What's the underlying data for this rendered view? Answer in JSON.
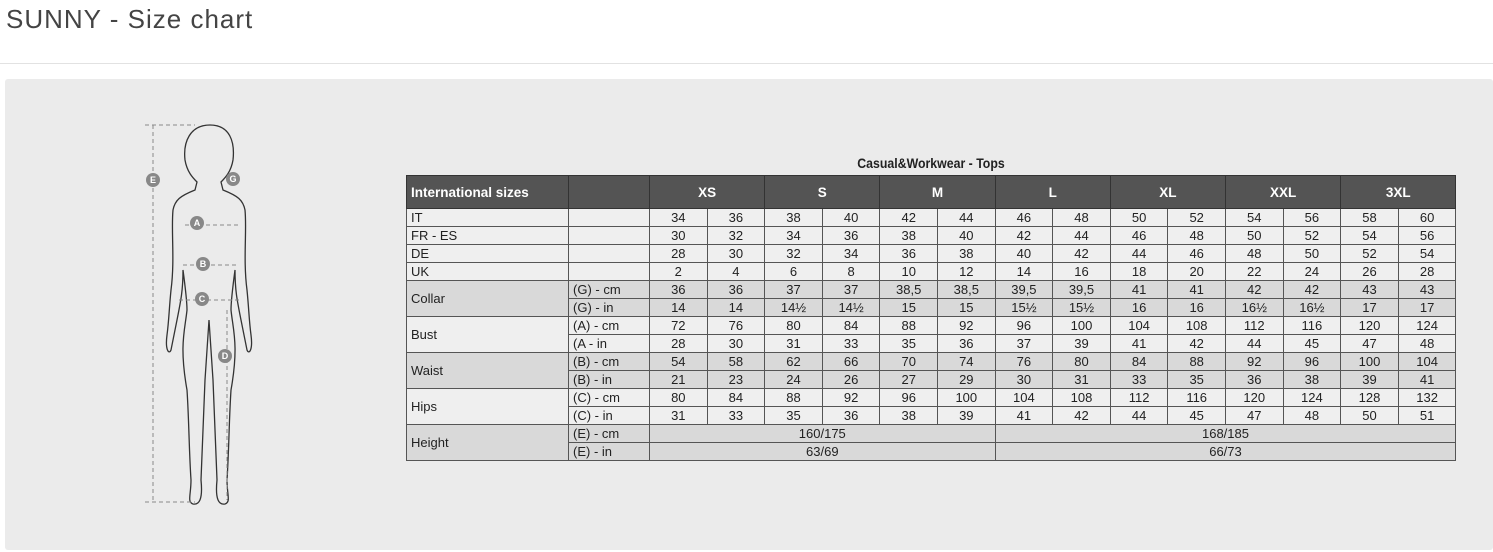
{
  "page_title": "SUNNY - Size chart",
  "figure": {
    "markers": [
      "A",
      "B",
      "C",
      "D",
      "E",
      "G"
    ]
  },
  "table": {
    "title": "Casual&Workwear - Tops",
    "header": {
      "first": "International sizes",
      "sizes": [
        "XS",
        "S",
        "M",
        "L",
        "XL",
        "XXL",
        "3XL"
      ]
    },
    "rows": [
      {
        "label": "IT",
        "sub": "",
        "values": [
          "34",
          "36",
          "38",
          "40",
          "42",
          "44",
          "46",
          "48",
          "50",
          "52",
          "54",
          "56",
          "58",
          "60"
        ],
        "shade": "light"
      },
      {
        "label": "FR - ES",
        "sub": "",
        "values": [
          "30",
          "32",
          "34",
          "36",
          "38",
          "40",
          "42",
          "44",
          "46",
          "48",
          "50",
          "52",
          "54",
          "56"
        ],
        "shade": "light"
      },
      {
        "label": "DE",
        "sub": "",
        "values": [
          "28",
          "30",
          "32",
          "34",
          "36",
          "38",
          "40",
          "42",
          "44",
          "46",
          "48",
          "50",
          "52",
          "54"
        ],
        "shade": "light"
      },
      {
        "label": "UK",
        "sub": "",
        "values": [
          "2",
          "4",
          "6",
          "8",
          "10",
          "12",
          "14",
          "16",
          "18",
          "20",
          "22",
          "24",
          "26",
          "28"
        ],
        "shade": "light"
      },
      {
        "label": "Collar",
        "sub": "(G) - cm",
        "values": [
          "36",
          "36",
          "37",
          "37",
          "38,5",
          "38,5",
          "39,5",
          "39,5",
          "41",
          "41",
          "42",
          "42",
          "43",
          "43"
        ],
        "shade": "dark",
        "group_start": true
      },
      {
        "label": "",
        "sub": "(G) - in",
        "values": [
          "14",
          "14",
          "14½",
          "14½",
          "15",
          "15",
          "15½",
          "15½",
          "16",
          "16",
          "16½",
          "16½",
          "17",
          "17"
        ],
        "shade": "dark"
      },
      {
        "label": "Bust",
        "sub": "(A) - cm",
        "values": [
          "72",
          "76",
          "80",
          "84",
          "88",
          "92",
          "96",
          "100",
          "104",
          "108",
          "112",
          "116",
          "120",
          "124"
        ],
        "shade": "light",
        "group_start": true
      },
      {
        "label": "",
        "sub": "(A - in",
        "values": [
          "28",
          "30",
          "31",
          "33",
          "35",
          "36",
          "37",
          "39",
          "41",
          "42",
          "44",
          "45",
          "47",
          "48"
        ],
        "shade": "light"
      },
      {
        "label": "Waist",
        "sub": "(B) - cm",
        "values": [
          "54",
          "58",
          "62",
          "66",
          "70",
          "74",
          "76",
          "80",
          "84",
          "88",
          "92",
          "96",
          "100",
          "104"
        ],
        "shade": "dark",
        "group_start": true
      },
      {
        "label": "",
        "sub": "(B) - in",
        "values": [
          "21",
          "23",
          "24",
          "26",
          "27",
          "29",
          "30",
          "31",
          "33",
          "35",
          "36",
          "38",
          "39",
          "41"
        ],
        "shade": "dark"
      },
      {
        "label": "Hips",
        "sub": "(C) - cm",
        "values": [
          "80",
          "84",
          "88",
          "92",
          "96",
          "100",
          "104",
          "108",
          "112",
          "116",
          "120",
          "124",
          "128",
          "132"
        ],
        "shade": "light",
        "group_start": true
      },
      {
        "label": "",
        "sub": "(C) - in",
        "values": [
          "31",
          "33",
          "35",
          "36",
          "38",
          "39",
          "41",
          "42",
          "44",
          "45",
          "47",
          "48",
          "50",
          "51"
        ],
        "shade": "light"
      },
      {
        "label": "Height",
        "sub": "(E) - cm",
        "spans": [
          "160/175",
          "168/185"
        ],
        "shade": "dark",
        "group_start": true
      },
      {
        "label": "",
        "sub": "(E) - in",
        "spans": [
          "63/69",
          "66/73"
        ],
        "shade": "dark"
      }
    ]
  }
}
